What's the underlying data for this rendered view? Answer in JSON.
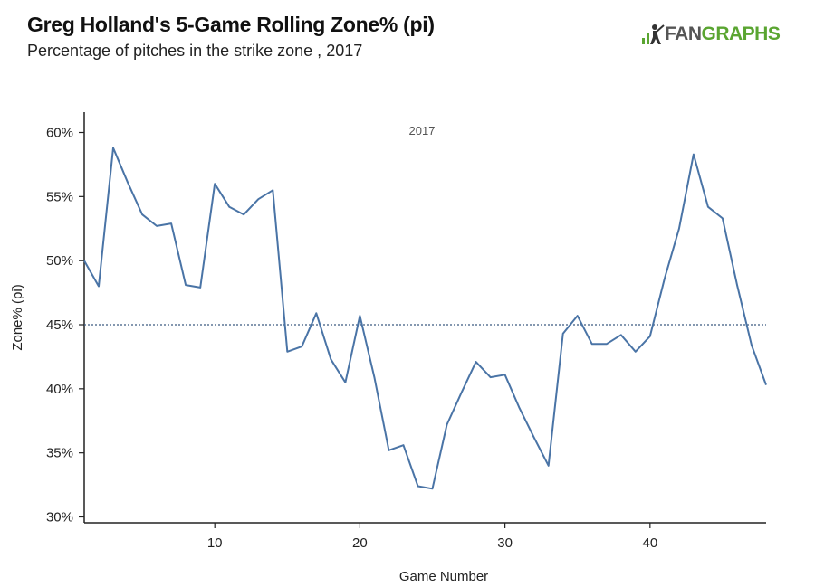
{
  "header": {
    "title": "Greg Holland's 5-Game Rolling Zone% (pi)",
    "subtitle": "Percentage of pitches in the strike zone , 2017"
  },
  "logo": {
    "prefix": "FAN",
    "suffix": "GRAPHS",
    "brand_color": "#5aa531"
  },
  "chart_data": {
    "type": "line",
    "title": "Greg Holland's 5-Game Rolling Zone% (pi)",
    "subtitle": "Percentage of pitches in the strike zone , 2017",
    "xlabel": "Game Number",
    "ylabel": "Zone% (pi)",
    "annotation": "2017",
    "xlim": [
      1,
      48
    ],
    "ylim": [
      30,
      60
    ],
    "x_ticks": [
      10,
      20,
      30,
      40
    ],
    "x_tick_labels": [
      "10",
      "20",
      "30",
      "40"
    ],
    "y_ticks": [
      30,
      35,
      40,
      45,
      50,
      55,
      60
    ],
    "y_tick_labels": [
      "30%",
      "35%",
      "40%",
      "45%",
      "50%",
      "55%",
      "60%"
    ],
    "reference_line": {
      "y": 45,
      "style": "dotted"
    },
    "line_color": "#4a74a6",
    "grid": false,
    "series": [
      {
        "x": [
          1,
          2,
          3,
          4,
          5,
          6,
          7,
          8,
          9,
          10,
          11,
          12,
          13,
          14,
          15,
          16,
          17,
          18,
          19,
          20,
          21,
          22,
          23,
          24,
          25,
          26,
          27,
          28,
          29,
          30,
          31,
          32,
          33,
          34,
          35,
          36,
          37,
          38,
          39,
          40,
          41,
          42,
          43,
          44,
          45,
          46,
          47,
          48
        ],
        "values": [
          50.0,
          48.0,
          58.8,
          56.1,
          53.6,
          52.7,
          52.9,
          48.1,
          47.9,
          56.0,
          54.2,
          53.6,
          54.8,
          55.5,
          42.9,
          43.3,
          45.9,
          42.3,
          40.5,
          45.7,
          40.9,
          35.2,
          35.6,
          32.4,
          32.2,
          37.2,
          39.7,
          42.1,
          40.9,
          41.1,
          38.5,
          36.2,
          34.0,
          44.3,
          45.7,
          43.5,
          43.5,
          44.2,
          42.9,
          44.1,
          48.6,
          52.5,
          58.3,
          54.2,
          53.3,
          48.1,
          43.4,
          40.3
        ]
      }
    ]
  }
}
